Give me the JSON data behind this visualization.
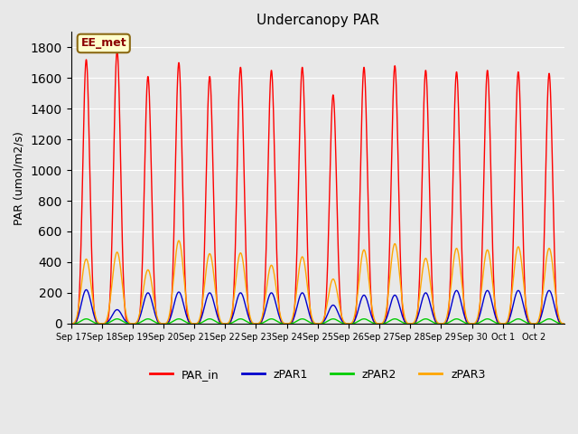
{
  "title": "Undercanopy PAR",
  "ylabel": "PAR (umol/m2/s)",
  "ylim": [
    0,
    1900
  ],
  "yticks": [
    0,
    200,
    400,
    600,
    800,
    1000,
    1200,
    1400,
    1600,
    1800
  ],
  "background_color": "#e8e8e8",
  "plot_bg_color": "#e8e8e8",
  "legend_entries": [
    "PAR_in",
    "zPAR1",
    "zPAR2",
    "zPAR3"
  ],
  "legend_colors": [
    "#ff0000",
    "#0000cc",
    "#00cc00",
    "#ffa500"
  ],
  "annotation_text": "EE_met",
  "n_days": 16,
  "date_labels": [
    "Sep 17",
    "Sep 18",
    "Sep 19",
    "Sep 20",
    "Sep 21",
    "Sep 22",
    "Sep 23",
    "Sep 24",
    "Sep 25",
    "Sep 26",
    "Sep 27",
    "Sep 28",
    "Sep 29",
    "Sep 30",
    "Oct 1",
    "Oct 2"
  ],
  "PAR_in_peaks": [
    1720,
    1780,
    1610,
    1700,
    1610,
    1670,
    1650,
    1670,
    1490,
    1670,
    1680,
    1650,
    1640,
    1650,
    1640,
    1630
  ],
  "zPAR1_peaks": [
    220,
    90,
    200,
    205,
    200,
    200,
    200,
    200,
    120,
    185,
    185,
    200,
    215,
    215,
    215,
    215
  ],
  "zPAR2_peaks": [
    30,
    30,
    30,
    30,
    30,
    30,
    30,
    30,
    30,
    30,
    30,
    30,
    30,
    30,
    30,
    30
  ],
  "zPAR3_peaks": [
    420,
    465,
    350,
    540,
    455,
    460,
    380,
    435,
    290,
    480,
    520,
    425,
    490,
    480,
    500,
    490
  ],
  "PAR_in_color": "#ff0000",
  "zPAR1_color": "#0000cc",
  "zPAR2_color": "#00cc00",
  "zPAR3_color": "#ffa500",
  "line_width": 1.0
}
